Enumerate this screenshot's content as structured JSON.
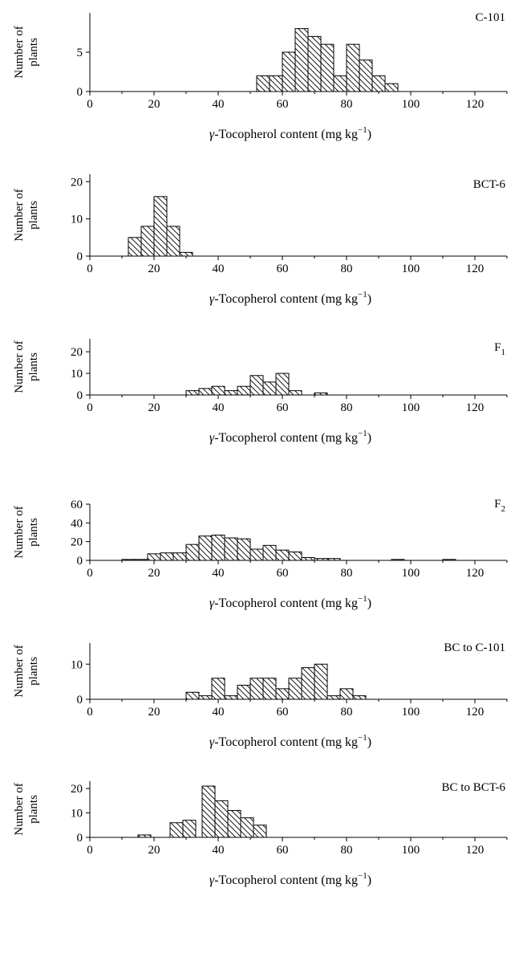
{
  "chart_data": [
    {
      "type": "bar",
      "panel_label": "C-101",
      "label_sub": "",
      "ylabel_lines": [
        "Number of",
        "plants"
      ],
      "xlabel": {
        "symbol": "γ",
        "text": "-Tocopherol content (mg kg",
        "sup": "−1",
        "close": ")"
      },
      "xlim": [
        0,
        130
      ],
      "ylim": [
        0,
        10
      ],
      "x_ticks": [
        "0",
        "20",
        "40",
        "60",
        "80",
        "100",
        "120"
      ],
      "y_ticks": [
        "0",
        "5"
      ],
      "bin_width": 4,
      "bins": [
        {
          "x": 52,
          "count": 2
        },
        {
          "x": 56,
          "count": 2
        },
        {
          "x": 60,
          "count": 5
        },
        {
          "x": 64,
          "count": 8
        },
        {
          "x": 68,
          "count": 7
        },
        {
          "x": 72,
          "count": 6
        },
        {
          "x": 76,
          "count": 2
        },
        {
          "x": 80,
          "count": 6
        },
        {
          "x": 84,
          "count": 4
        },
        {
          "x": 88,
          "count": 2
        },
        {
          "x": 92,
          "count": 1
        }
      ]
    },
    {
      "type": "bar",
      "panel_label": "BCT-6",
      "label_sub": "",
      "ylabel_lines": [
        "Number of",
        "plants"
      ],
      "xlabel": {
        "symbol": "γ",
        "text": "-Tocopherol content (mg kg",
        "sup": "−1",
        "close": ")"
      },
      "xlim": [
        0,
        130
      ],
      "ylim": [
        0,
        22
      ],
      "x_ticks": [
        "0",
        "20",
        "40",
        "60",
        "80",
        "100",
        "120"
      ],
      "y_ticks": [
        "0",
        "10",
        "20"
      ],
      "bin_width": 4,
      "bins": [
        {
          "x": 12,
          "count": 5
        },
        {
          "x": 16,
          "count": 8
        },
        {
          "x": 20,
          "count": 16
        },
        {
          "x": 24,
          "count": 8
        },
        {
          "x": 28,
          "count": 1
        }
      ]
    },
    {
      "type": "bar",
      "panel_label": "F",
      "label_sub": "1",
      "ylabel_lines": [
        "Number of",
        "plants"
      ],
      "xlabel": {
        "symbol": "γ",
        "text": "-Tocopherol content (mg kg",
        "sup": "−1",
        "close": ")"
      },
      "xlim": [
        0,
        130
      ],
      "ylim": [
        0,
        26
      ],
      "x_ticks": [
        "0",
        "20",
        "40",
        "60",
        "80",
        "100",
        "120"
      ],
      "y_ticks": [
        "0",
        "10",
        "20"
      ],
      "bin_width": 4,
      "bins": [
        {
          "x": 30,
          "count": 2
        },
        {
          "x": 34,
          "count": 3
        },
        {
          "x": 38,
          "count": 4
        },
        {
          "x": 42,
          "count": 2
        },
        {
          "x": 46,
          "count": 4
        },
        {
          "x": 50,
          "count": 9
        },
        {
          "x": 54,
          "count": 6
        },
        {
          "x": 58,
          "count": 10
        },
        {
          "x": 62,
          "count": 2
        },
        {
          "x": 70,
          "count": 1
        }
      ]
    },
    {
      "type": "bar",
      "panel_label": "F",
      "label_sub": "2",
      "ylabel_lines": [
        "Number of",
        "plants"
      ],
      "xlabel": {
        "symbol": "γ",
        "text": "-Tocopherol content (mg kg",
        "sup": "−1",
        "close": ")"
      },
      "xlim": [
        0,
        130
      ],
      "ylim": [
        0,
        60
      ],
      "x_ticks": [
        "0",
        "20",
        "40",
        "60",
        "80",
        "100",
        "120"
      ],
      "y_ticks": [
        "0",
        "20",
        "40",
        "60"
      ],
      "bin_width": 4,
      "bins": [
        {
          "x": 10,
          "count": 1
        },
        {
          "x": 14,
          "count": 1
        },
        {
          "x": 18,
          "count": 7
        },
        {
          "x": 22,
          "count": 8
        },
        {
          "x": 26,
          "count": 8
        },
        {
          "x": 30,
          "count": 17
        },
        {
          "x": 34,
          "count": 26
        },
        {
          "x": 38,
          "count": 27
        },
        {
          "x": 42,
          "count": 24
        },
        {
          "x": 46,
          "count": 23
        },
        {
          "x": 50,
          "count": 12
        },
        {
          "x": 54,
          "count": 16
        },
        {
          "x": 58,
          "count": 11
        },
        {
          "x": 62,
          "count": 9
        },
        {
          "x": 66,
          "count": 3
        },
        {
          "x": 70,
          "count": 2
        },
        {
          "x": 74,
          "count": 2
        },
        {
          "x": 94,
          "count": 1
        },
        {
          "x": 110,
          "count": 1
        }
      ]
    },
    {
      "type": "bar",
      "panel_label": "BC to C-101",
      "label_sub": "",
      "ylabel_lines": [
        "Number of",
        "plants"
      ],
      "xlabel": {
        "symbol": "γ",
        "text": "-Tocopherol content (mg kg",
        "sup": "−1",
        "close": ")"
      },
      "xlim": [
        0,
        130
      ],
      "ylim": [
        0,
        16
      ],
      "x_ticks": [
        "0",
        "20",
        "40",
        "60",
        "80",
        "100",
        "120"
      ],
      "y_ticks": [
        "0",
        "10"
      ],
      "bin_width": 4,
      "bins": [
        {
          "x": 30,
          "count": 2
        },
        {
          "x": 34,
          "count": 1
        },
        {
          "x": 38,
          "count": 6
        },
        {
          "x": 42,
          "count": 1
        },
        {
          "x": 46,
          "count": 4
        },
        {
          "x": 50,
          "count": 6
        },
        {
          "x": 54,
          "count": 6
        },
        {
          "x": 58,
          "count": 3
        },
        {
          "x": 62,
          "count": 6
        },
        {
          "x": 66,
          "count": 9
        },
        {
          "x": 70,
          "count": 10
        },
        {
          "x": 74,
          "count": 1
        },
        {
          "x": 78,
          "count": 3
        },
        {
          "x": 82,
          "count": 1
        }
      ]
    },
    {
      "type": "bar",
      "panel_label": "BC to BCT-6",
      "label_sub": "",
      "ylabel_lines": [
        "Number of",
        "plants"
      ],
      "xlabel": {
        "symbol": "γ",
        "text": "-Tocopherol content (mg kg",
        "sup": "−1",
        "close": ")"
      },
      "xlim": [
        0,
        130
      ],
      "ylim": [
        0,
        23
      ],
      "x_ticks": [
        "0",
        "20",
        "40",
        "60",
        "80",
        "100",
        "120"
      ],
      "y_ticks": [
        "0",
        "10",
        "20"
      ],
      "bin_width": 4,
      "bins": [
        {
          "x": 15,
          "count": 1
        },
        {
          "x": 25,
          "count": 6
        },
        {
          "x": 29,
          "count": 7
        },
        {
          "x": 35,
          "count": 21
        },
        {
          "x": 39,
          "count": 15
        },
        {
          "x": 43,
          "count": 11
        },
        {
          "x": 47,
          "count": 8
        },
        {
          "x": 51,
          "count": 5
        }
      ]
    }
  ]
}
